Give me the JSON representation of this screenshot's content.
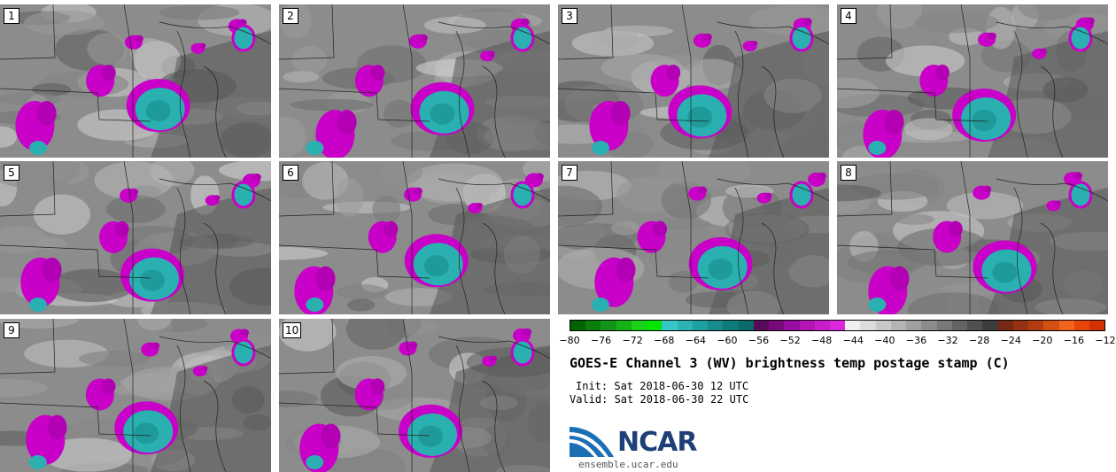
{
  "panels": [
    {
      "label": "1"
    },
    {
      "label": "2"
    },
    {
      "label": "3"
    },
    {
      "label": "4"
    },
    {
      "label": "5"
    },
    {
      "label": "6"
    },
    {
      "label": "7"
    },
    {
      "label": "8"
    },
    {
      "label": "9"
    },
    {
      "label": "10"
    }
  ],
  "colorbar": {
    "colors": [
      "#006400",
      "#0a7d0a",
      "#11961a",
      "#14b014",
      "#1ad21a",
      "#00e600",
      "#36c8c8",
      "#2db3b3",
      "#1fa0a0",
      "#168c8c",
      "#0f7a7a",
      "#0a6a6a",
      "#5a0a5a",
      "#780a78",
      "#960fa0",
      "#b414b4",
      "#c81ec8",
      "#dc28dc",
      "#f0f0f0",
      "#dcdcdc",
      "#c8c8c8",
      "#b4b4b4",
      "#a0a0a0",
      "#8c8c8c",
      "#787878",
      "#646464",
      "#505050",
      "#3c3c3c",
      "#782814",
      "#963214",
      "#b43c14",
      "#d25014",
      "#f0641e",
      "#e6460a",
      "#d23200"
    ],
    "ticks": [
      "−80",
      "−76",
      "−72",
      "−68",
      "−64",
      "−60",
      "−56",
      "−52",
      "−48",
      "−44",
      "−40",
      "−36",
      "−32",
      "−28",
      "−24",
      "−20",
      "−16",
      "−12"
    ]
  },
  "title": "GOES-E Channel 3 (WV) brightness temp postage stamp (C)",
  "init": "Init: Sat 2018-06-30 12 UTC",
  "valid": "Valid: Sat 2018-06-30 22 UTC",
  "logo_text": "NCAR",
  "site": "ensemble.ucar.edu"
}
